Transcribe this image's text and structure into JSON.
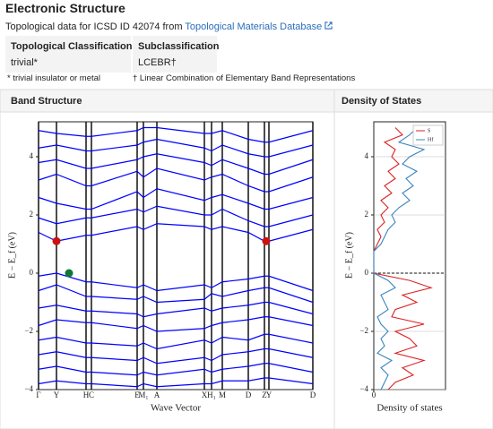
{
  "page": {
    "title": "Electronic Structure",
    "source_text": "Topological data for ICSD ID 42074 from",
    "source_link": "Topological Materials Database",
    "table": {
      "headers": [
        "Topological Classification",
        "Subclassification"
      ],
      "rows": [
        [
          "trivial*",
          "LCEBR†"
        ]
      ]
    },
    "footnotes": [
      "* trivial insulator or metal",
      "† Linear Combination of Elementary Band Representations"
    ],
    "panels": [
      "Band Structure",
      "Density of States"
    ]
  },
  "chart_data": [
    {
      "type": "line",
      "xlabel": "Wave Vector",
      "ylabel": "E − E_f (eV)",
      "x": [
        0,
        0.2,
        0.53,
        0.59,
        1.1,
        1.17,
        1.32,
        1.85,
        1.93,
        2.05,
        2.34,
        2.52,
        2.57,
        3.06
      ],
      "xlim": [
        0,
        3.06
      ],
      "ylim": [
        -4,
        5.2
      ],
      "xticks": [
        {
          "value": 0,
          "label": "Γ"
        },
        {
          "value": 0.2,
          "label": "Y"
        },
        {
          "value": 0.53,
          "label": "H"
        },
        {
          "value": 0.59,
          "label": "C"
        },
        {
          "value": 1.1,
          "label": "E"
        },
        {
          "value": 1.17,
          "label": "M₁"
        },
        {
          "value": 1.32,
          "label": "A"
        },
        {
          "value": 1.85,
          "label": "X"
        },
        {
          "value": 1.93,
          "label": "H₁"
        },
        {
          "value": 2.05,
          "label": "M"
        },
        {
          "value": 2.34,
          "label": "D"
        },
        {
          "value": 2.52,
          "label": "Z"
        },
        {
          "value": 2.57,
          "label": "Y"
        },
        {
          "value": 3.06,
          "label": "D"
        }
      ],
      "yticks": [
        {
          "value": -4,
          "label": "−4"
        },
        {
          "value": -2,
          "label": "−2"
        },
        0,
        2,
        4
      ],
      "color": "#0000ff",
      "series": [
        {
          "values": [
            -0.1,
            0,
            -0.3,
            -0.3,
            -0.5,
            -0.4,
            -0.6,
            -0.4,
            -0.5,
            -0.3,
            -0.2,
            -0.1,
            -0.1,
            -0.6
          ]
        },
        {
          "values": [
            -0.6,
            -0.4,
            -0.8,
            -0.8,
            -0.9,
            -0.8,
            -1.0,
            -0.9,
            -0.7,
            -0.8,
            -0.6,
            -0.5,
            -0.5,
            -1.0
          ]
        },
        {
          "values": [
            -1.2,
            -1.1,
            -1.3,
            -1.3,
            -1.4,
            -1.5,
            -1.4,
            -1.2,
            -1.3,
            -1.2,
            -1.1,
            -1.0,
            -1.0,
            -1.4
          ]
        },
        {
          "values": [
            -1.8,
            -1.6,
            -1.7,
            -1.7,
            -1.9,
            -1.8,
            -2.0,
            -1.9,
            -1.8,
            -1.7,
            -1.6,
            -1.5,
            -1.5,
            -1.8
          ]
        },
        {
          "values": [
            -2.3,
            -2.2,
            -2.4,
            -2.4,
            -2.5,
            -2.4,
            -2.6,
            -2.3,
            -2.4,
            -2.2,
            -2.3,
            -2.1,
            -2.1,
            -2.4
          ]
        },
        {
          "values": [
            -2.8,
            -2.7,
            -2.9,
            -2.9,
            -3.0,
            -2.9,
            -3.1,
            -2.9,
            -3.0,
            -2.8,
            -2.7,
            -2.6,
            -2.6,
            -2.9
          ]
        },
        {
          "values": [
            -3.3,
            -3.2,
            -3.4,
            -3.4,
            -3.5,
            -3.4,
            -3.5,
            -3.3,
            -3.4,
            -3.3,
            -3.2,
            -3.1,
            -3.1,
            -3.4
          ]
        },
        {
          "values": [
            -3.8,
            -3.7,
            -3.8,
            -3.8,
            -3.9,
            -3.8,
            -3.9,
            -3.8,
            -3.8,
            -3.7,
            -3.7,
            -3.6,
            -3.6,
            -3.8
          ]
        },
        {
          "values": [
            1.4,
            1.1,
            1.3,
            1.3,
            1.6,
            1.5,
            1.7,
            1.6,
            1.5,
            1.6,
            1.4,
            1.1,
            1.1,
            1.5
          ]
        },
        {
          "values": [
            1.9,
            1.7,
            1.9,
            1.9,
            2.2,
            2.1,
            2.3,
            2.0,
            2.0,
            2.2,
            1.8,
            1.6,
            1.6,
            2.0
          ]
        },
        {
          "values": [
            2.6,
            2.4,
            2.2,
            2.2,
            2.8,
            2.6,
            2.9,
            2.5,
            2.6,
            2.7,
            2.4,
            2.2,
            2.2,
            2.6
          ]
        },
        {
          "values": [
            3.2,
            3.4,
            3.0,
            3.0,
            3.5,
            3.3,
            3.6,
            3.2,
            3.3,
            3.4,
            3.0,
            2.8,
            2.8,
            3.3
          ]
        },
        {
          "values": [
            3.8,
            3.9,
            3.6,
            3.6,
            3.9,
            4.0,
            4.1,
            3.8,
            3.7,
            3.9,
            3.6,
            3.4,
            3.4,
            3.9
          ]
        },
        {
          "values": [
            4.3,
            4.4,
            4.2,
            4.2,
            4.4,
            4.5,
            4.6,
            4.3,
            4.2,
            4.4,
            4.1,
            4.0,
            4.0,
            4.4
          ]
        },
        {
          "values": [
            4.9,
            4.8,
            4.7,
            4.7,
            4.9,
            5.0,
            5.0,
            4.8,
            4.8,
            4.9,
            4.6,
            4.5,
            4.5,
            4.9
          ]
        }
      ],
      "points": [
        {
          "x": 0.2,
          "y": 1.1,
          "color": "#cc1111"
        },
        {
          "x": 2.54,
          "y": 1.1,
          "color": "#cc1111"
        },
        {
          "x": 0.34,
          "y": 0,
          "color": "#117733"
        }
      ]
    },
    {
      "type": "dos",
      "xlabel": "Density of states",
      "ylabel": "E − E_f (eV)",
      "energy": [
        -4,
        -3.75,
        -3.5,
        -3.25,
        -3,
        -2.75,
        -2.5,
        -2.25,
        -2,
        -1.75,
        -1.5,
        -1.25,
        -1,
        -0.75,
        -0.5,
        -0.25,
        0,
        0.25,
        0.5,
        0.75,
        1,
        1.25,
        1.5,
        1.75,
        2,
        2.25,
        2.5,
        2.75,
        3,
        3.25,
        3.5,
        3.75,
        4,
        4.25,
        4.5,
        4.75,
        5
      ],
      "xlim": [
        0,
        1
      ],
      "ylim": [
        -4,
        5.2
      ],
      "xticks": [
        0
      ],
      "yticks": [
        {
          "value": -4,
          "label": "−4"
        },
        {
          "value": -2,
          "label": "−2"
        },
        0,
        2,
        4
      ],
      "grid": true,
      "fermi_level": 0,
      "legend": "upper right",
      "series": [
        {
          "name": "S",
          "color": "#dd2222",
          "values": [
            0.2,
            0.3,
            0.55,
            0.4,
            0.7,
            0.3,
            0.6,
            0.5,
            0.3,
            0.7,
            0.25,
            0.3,
            0.6,
            0.4,
            0.8,
            0.5,
            0,
            0,
            0,
            0,
            0.05,
            0.1,
            0.05,
            0.15,
            0.1,
            0.2,
            0.1,
            0.25,
            0.15,
            0.3,
            0.2,
            0.35,
            0.25,
            0.3,
            0.15,
            0.4,
            0.3
          ]
        },
        {
          "name": "Hf",
          "color": "#3a85c0",
          "values": [
            0.1,
            0.15,
            0.2,
            0.1,
            0.25,
            0.05,
            0.15,
            0.1,
            0.2,
            0.1,
            0.05,
            0.2,
            0.15,
            0.1,
            0.3,
            0.2,
            0,
            0,
            0,
            0,
            0.1,
            0.15,
            0.2,
            0.3,
            0.25,
            0.35,
            0.5,
            0.4,
            0.55,
            0.45,
            0.6,
            0.4,
            0.5,
            0.7,
            0.35,
            0.5,
            0.6
          ]
        }
      ]
    }
  ]
}
